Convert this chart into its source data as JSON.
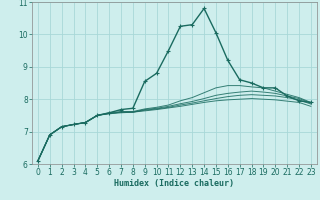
{
  "title": "",
  "xlabel": "Humidex (Indice chaleur)",
  "bg_color": "#ceeeed",
  "line_color": "#1a6b60",
  "grid_color": "#a8d8d8",
  "xlim": [
    -0.5,
    23.5
  ],
  "ylim": [
    6,
    11
  ],
  "yticks": [
    6,
    7,
    8,
    9,
    10,
    11
  ],
  "xticks": [
    0,
    1,
    2,
    3,
    4,
    5,
    6,
    7,
    8,
    9,
    10,
    11,
    12,
    13,
    14,
    15,
    16,
    17,
    18,
    19,
    20,
    21,
    22,
    23
  ],
  "series": [
    [
      6.1,
      6.9,
      7.15,
      7.22,
      7.28,
      7.5,
      7.58,
      7.68,
      7.72,
      8.55,
      8.8,
      9.5,
      10.25,
      10.3,
      10.8,
      10.05,
      9.2,
      8.6,
      8.5,
      8.35,
      8.35,
      8.1,
      7.95,
      7.9
    ],
    [
      6.1,
      6.9,
      7.15,
      7.22,
      7.28,
      7.5,
      7.58,
      7.62,
      7.62,
      7.7,
      7.75,
      7.82,
      7.95,
      8.05,
      8.2,
      8.35,
      8.42,
      8.42,
      8.38,
      8.35,
      8.25,
      8.15,
      8.05,
      7.9
    ],
    [
      6.1,
      6.9,
      7.15,
      7.22,
      7.28,
      7.5,
      7.56,
      7.6,
      7.6,
      7.68,
      7.72,
      7.78,
      7.86,
      7.93,
      8.02,
      8.12,
      8.18,
      8.22,
      8.25,
      8.22,
      8.18,
      8.1,
      8.02,
      7.88
    ],
    [
      6.1,
      6.9,
      7.15,
      7.22,
      7.28,
      7.5,
      7.56,
      7.6,
      7.6,
      7.66,
      7.7,
      7.75,
      7.82,
      7.88,
      7.95,
      8.02,
      8.08,
      8.12,
      8.14,
      8.12,
      8.1,
      8.05,
      7.98,
      7.85
    ],
    [
      6.1,
      6.9,
      7.15,
      7.22,
      7.28,
      7.5,
      7.55,
      7.58,
      7.6,
      7.64,
      7.68,
      7.73,
      7.78,
      7.84,
      7.9,
      7.95,
      7.98,
      8.0,
      8.02,
      8.0,
      7.98,
      7.94,
      7.9,
      7.78
    ]
  ],
  "marker": "+",
  "marker_size": 3,
  "linewidth_main": 1.0,
  "linewidth_other": 0.7
}
